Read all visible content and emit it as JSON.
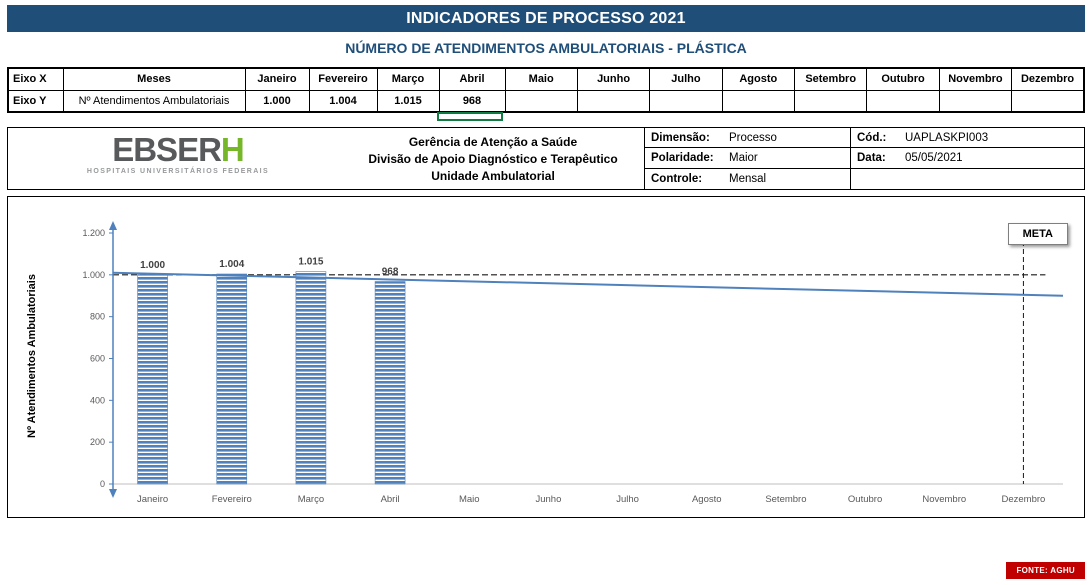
{
  "banner": {
    "title": "INDICADORES DE PROCESSO 2021"
  },
  "subtitle": "NÚMERO DE ATENDIMENTOS AMBULATORIAIS -  PLÁSTICA",
  "axis_table": {
    "x_row_label": "Eixo X",
    "y_row_label": "Eixo Y",
    "x_header": "Meses",
    "y_header": "Nº Atendimentos Ambulatoriais",
    "months": [
      "Janeiro",
      "Fevereiro",
      "Março",
      "Abril",
      "Maio",
      "Junho",
      "Julho",
      "Agosto",
      "Setembro",
      "Outubro",
      "Novembro",
      "Dezembro"
    ],
    "values": [
      "1.000",
      "1.004",
      "1.015",
      "968",
      "",
      "",
      "",
      "",
      "",
      "",
      "",
      ""
    ]
  },
  "org_header": {
    "logo_main": "EBSER",
    "logo_accent": "H",
    "logo_tagline": "HOSPITAIS UNIVERSITÁRIOS FEDERAIS",
    "lines": [
      "Gerência de Atenção a Saúde",
      "Divisão de Apoio Diagnóstico e Terapêutico",
      "Unidade Ambulatorial"
    ],
    "fields": [
      {
        "label": "Dimensão:",
        "value": "Processo"
      },
      {
        "label": "Cód.:",
        "value": "UAPLASKPI003"
      },
      {
        "label": "Polaridade:",
        "value": "Maior"
      },
      {
        "label": "Data:",
        "value": "05/05/2021"
      },
      {
        "label": "Controle:",
        "value": "Mensal"
      }
    ]
  },
  "chart_data": {
    "type": "bar",
    "categories": [
      "Janeiro",
      "Fevereiro",
      "Março",
      "Abril",
      "Maio",
      "Junho",
      "Julho",
      "Agosto",
      "Setembro",
      "Outubro",
      "Novembro",
      "Dezembro"
    ],
    "values": [
      1000,
      1004,
      1015,
      968,
      null,
      null,
      null,
      null,
      null,
      null,
      null,
      null
    ],
    "value_labels": [
      "1.000",
      "1.004",
      "1.015",
      "968"
    ],
    "ylabel": "Nº Atendimentos Ambulatoriais",
    "ylim": [
      0,
      1200
    ],
    "ytick_step": 200,
    "ytick_labels": [
      "0",
      "200",
      "400",
      "600",
      "800",
      "1.000",
      "1.200"
    ],
    "meta": {
      "value": 1000,
      "label": "META"
    },
    "trend_line": {
      "start_value": 1010,
      "end_value": 900
    },
    "grid": false,
    "legend_position": "none",
    "colors": {
      "bar": "#4F81BD",
      "trend": "#4F81BD",
      "axis": "#4F81BD",
      "meta_line": "#1A1A1A"
    }
  },
  "footer": {
    "source_label": "FONTE: AGHU"
  }
}
